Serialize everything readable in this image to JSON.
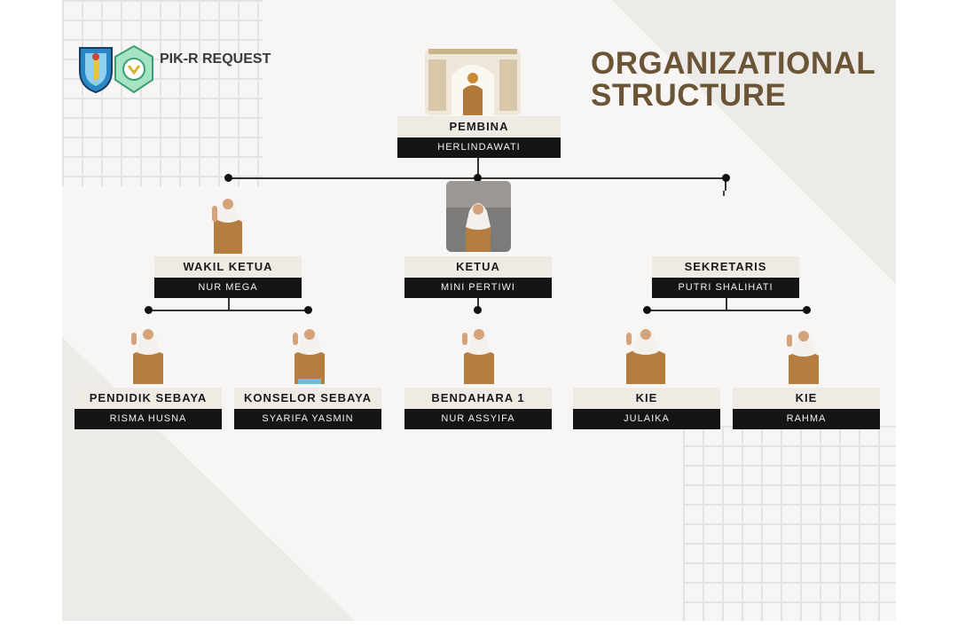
{
  "brand": {
    "name": "PIK-R REQUEST"
  },
  "title": {
    "line1": "ORGANIZATIONAL",
    "line2": "STRUCTURE"
  },
  "pembina": {
    "role": "PEMBINA",
    "name": "HERLINDAWATI"
  },
  "level2": [
    {
      "role": "WAKIL KETUA",
      "name": "NUR MEGA"
    },
    {
      "role": "KETUA",
      "name": "MINI PERTIWI"
    },
    {
      "role": "SEKRETARIS",
      "name": "PUTRI SHALIHATI"
    }
  ],
  "level3": [
    {
      "role": "PENDIDIK SEBAYA",
      "name": "RISMA HUSNA"
    },
    {
      "role": "KONSELOR SEBAYA",
      "name": "SYARIFA YASMIN"
    },
    {
      "role": "BENDAHARA 1",
      "name": "NUR ASSYIFA"
    },
    {
      "role": "KIE",
      "name": "JULAIKA"
    },
    {
      "role": "KIE",
      "name": "RAHMA"
    }
  ],
  "colors": {
    "title": "#6b5536",
    "name_bar": "#151515",
    "role_bar": "#efebe4",
    "uniform": "#b57d40",
    "hijab": "#f4f1ec"
  }
}
